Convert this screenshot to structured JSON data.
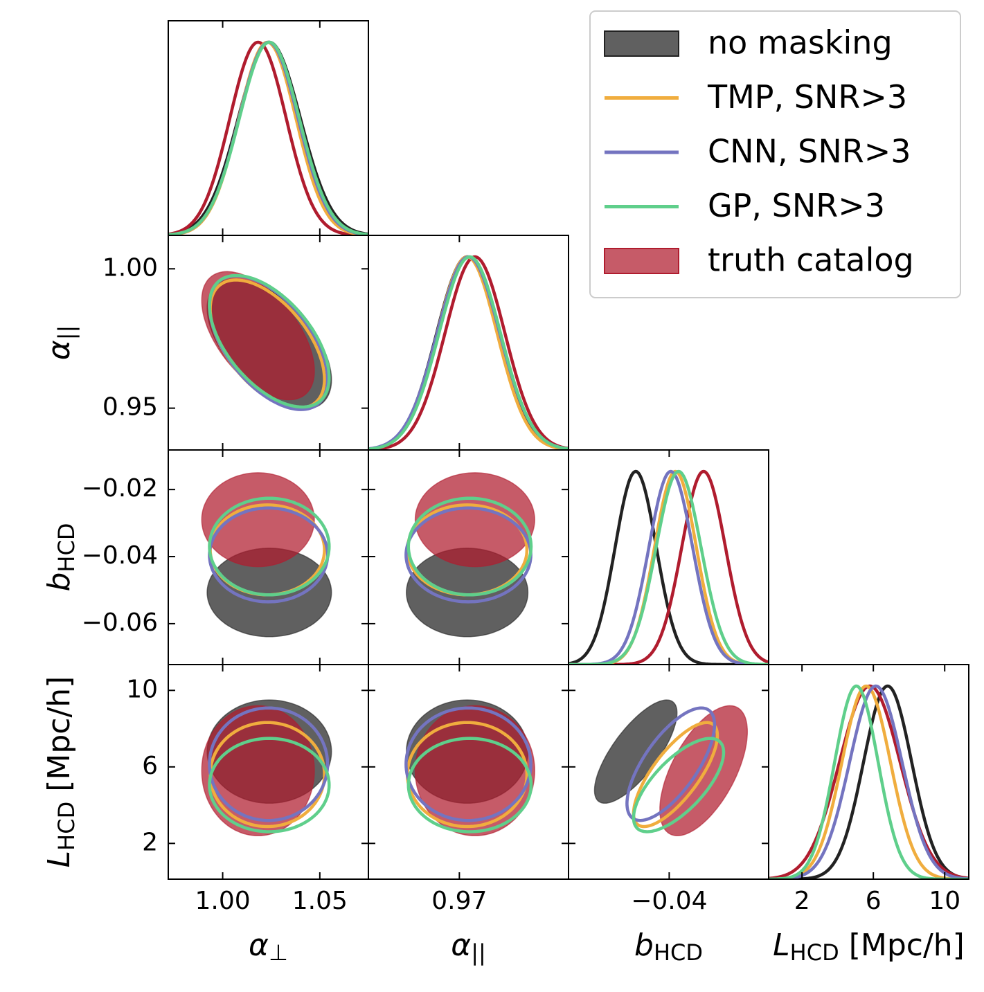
{
  "chart_data": {
    "type": "corner",
    "legend": "upper right",
    "params": [
      {
        "label": "α",
        "subscript": "⊥",
        "lim": [
          0.972,
          1.075
        ],
        "xticks": [
          {
            "value": 1.0,
            "label": "1.00"
          },
          {
            "value": 1.05,
            "label": "1.05"
          }
        ]
      },
      {
        "label": "α",
        "subscript": "||",
        "lim": [
          0.935,
          1.012
        ],
        "xticks": [
          {
            "value": 0.97,
            "label": "0.97"
          }
        ],
        "yticks": [
          {
            "value": 1.0,
            "label": "1.00"
          },
          {
            "value": 0.95,
            "label": "0.95"
          }
        ]
      },
      {
        "label": "b",
        "subscript": "HCD",
        "lim": [
          -0.0722,
          -0.0082
        ],
        "xticks": [
          {
            "value": -0.04,
            "label": "−0.04"
          }
        ],
        "yticks": [
          {
            "value": -0.02,
            "label": "−0.02"
          },
          {
            "value": -0.04,
            "label": "−0.04"
          },
          {
            "value": -0.06,
            "label": "−0.06"
          }
        ]
      },
      {
        "label": "L",
        "subscript": "HCD",
        "unit": " [Mpc/h]",
        "lim": [
          0.13,
          11.35
        ],
        "xticks": [
          2,
          6,
          10
        ],
        "yticks": [
          2,
          6,
          10
        ]
      }
    ],
    "series": [
      {
        "name": "no masking",
        "color": "#222222",
        "fill": true,
        "means": [
          1.024,
          0.973,
          -0.0507,
          6.8
        ],
        "sigmas": [
          0.016,
          0.0117,
          0.0066,
          1.35
        ],
        "correlations": [
          -0.55,
          0.0,
          0.0,
          0.0,
          0.0,
          0.75
        ]
      },
      {
        "name": "TMP, SNR>3",
        "color": "#f0ad3e",
        "fill": false,
        "means": [
          1.023,
          0.973,
          -0.038,
          5.6
        ],
        "sigmas": [
          0.0147,
          0.0115,
          0.0067,
          1.36
        ],
        "correlations": [
          -0.55,
          0.0,
          0.0,
          0.0,
          0.0,
          0.75
        ]
      },
      {
        "name": "CNN, SNR>3",
        "color": "#7474c0",
        "fill": false,
        "means": [
          1.0236,
          0.9735,
          -0.0395,
          6.14
        ],
        "sigmas": [
          0.0152,
          0.012,
          0.007,
          1.47
        ],
        "correlations": [
          -0.55,
          0.0,
          0.0,
          0.0,
          0.0,
          0.7
        ]
      },
      {
        "name": "GP, SNR>3",
        "color": "#5fcf8b",
        "fill": false,
        "means": [
          1.024,
          0.974,
          -0.037,
          5.05
        ],
        "sigmas": [
          0.0154,
          0.0118,
          0.0072,
          1.22
        ],
        "correlations": [
          -0.55,
          0.0,
          0.0,
          0.0,
          0.0,
          0.7
        ]
      },
      {
        "name": "truth catalog",
        "color": "#b01c2e",
        "fill": true,
        "means": [
          1.0182,
          0.976,
          -0.029,
          5.8
        ],
        "sigmas": [
          0.0145,
          0.0115,
          0.007,
          1.7
        ],
        "correlations": [
          -0.55,
          0.0,
          0.0,
          0.0,
          0.0,
          0.6
        ]
      }
    ]
  }
}
